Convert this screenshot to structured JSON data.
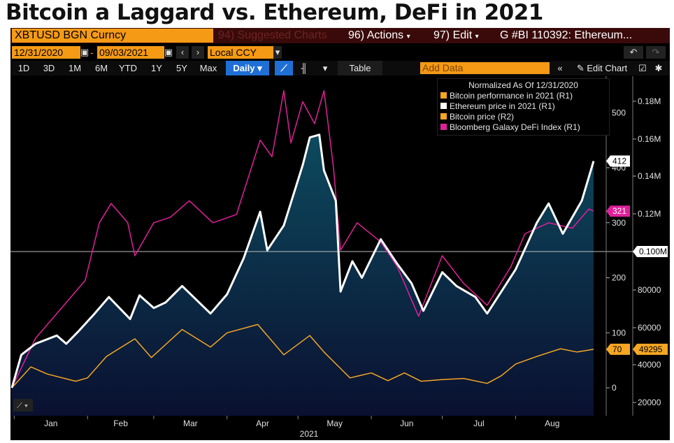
{
  "headline": "Bitcoin a Laggard vs. Ethereum, DeFi in 2021",
  "toolbar": {
    "ticker": "XBTUSD BGN Curncy",
    "suggested": "94) Suggested Charts",
    "actions": "96) Actions",
    "edit": "97) Edit",
    "bi": "G #BI 110392: Ethereum...",
    "date_start": "12/31/2020",
    "date_sep": "-",
    "date_end": "09/03/2021",
    "currency": "Local CCY",
    "timeframes": [
      "1D",
      "3D",
      "1M",
      "6M",
      "YTD",
      "1Y",
      "5Y",
      "Max"
    ],
    "frequency": "Daily",
    "table_label": "Table",
    "add_data_placeholder": "Add Data",
    "edit_chart": "Edit Chart"
  },
  "colors": {
    "bitcoin_perf": "#f5a623",
    "ethereum": "#ffffff",
    "bitcoin_price": "#f5a623",
    "defi": "#e0209a",
    "area_top": "#0d4a5e",
    "area_bottom": "#0a1030",
    "terminal_bg": "#000000"
  },
  "chart_data": {
    "type": "line",
    "legend_title": "Normalized As Of 12/31/2020",
    "legend_placement": "top-right",
    "x_tick_labels": [
      "Jan",
      "Feb",
      "Mar",
      "Apr",
      "May",
      "Jun",
      "Jul",
      "Aug"
    ],
    "x_axis_year": "2021",
    "y_left_ticks": [
      0,
      100,
      200,
      300,
      400,
      500
    ],
    "y_left_range": [
      -30,
      560
    ],
    "y_right_ticks": [
      "20000",
      "40000",
      "60000",
      "80000",
      "0.100M",
      "0.12M",
      "0.14M",
      "0.16M",
      "0.18M"
    ],
    "y_right_range": [
      13000,
      0.195
    ],
    "reference_line": 0.1,
    "end_labels": {
      "ethereum": "412",
      "defi": "321",
      "bitcoin_perf": "70",
      "bitcoin_price": "49295"
    },
    "series": [
      {
        "name": "Bitcoin performance in 2021 (R1)",
        "axis": "left",
        "x": [
          "2020-12-31",
          "2021-01-08",
          "2021-01-15",
          "2021-01-27",
          "2021-02-01",
          "2021-02-09",
          "2021-02-21",
          "2021-02-28",
          "2021-03-13",
          "2021-03-25",
          "2021-04-01",
          "2021-04-14",
          "2021-04-25",
          "2021-05-06",
          "2021-05-12",
          "2021-05-19",
          "2021-05-23",
          "2021-06-01",
          "2021-06-08",
          "2021-06-15",
          "2021-06-22",
          "2021-07-01",
          "2021-07-10",
          "2021-07-20",
          "2021-07-26",
          "2021-08-01",
          "2021-08-10",
          "2021-08-20",
          "2021-08-27",
          "2021-09-03"
        ],
        "values": [
          0,
          38,
          25,
          12,
          18,
          57,
          89,
          55,
          106,
          74,
          100,
          115,
          60,
          95,
          65,
          35,
          18,
          27,
          13,
          27,
          12,
          15,
          17,
          8,
          22,
          43,
          57,
          71,
          65,
          70
        ]
      },
      {
        "name": "Ethereum price in 2021 (R1)",
        "axis": "left",
        "x": [
          "2020-12-31",
          "2021-01-04",
          "2021-01-10",
          "2021-01-19",
          "2021-01-23",
          "2021-01-28",
          "2021-02-04",
          "2021-02-10",
          "2021-02-19",
          "2021-02-23",
          "2021-03-01",
          "2021-03-06",
          "2021-03-13",
          "2021-03-25",
          "2021-04-01",
          "2021-04-08",
          "2021-04-15",
          "2021-04-18",
          "2021-04-25",
          "2021-05-03",
          "2021-05-06",
          "2021-05-10",
          "2021-05-12",
          "2021-05-17",
          "2021-05-19",
          "2021-05-24",
          "2021-05-28",
          "2021-06-05",
          "2021-06-12",
          "2021-06-18",
          "2021-06-23",
          "2021-07-01",
          "2021-07-07",
          "2021-07-15",
          "2021-07-20",
          "2021-08-01",
          "2021-08-10",
          "2021-08-15",
          "2021-08-21",
          "2021-08-29",
          "2021-09-03"
        ],
        "values": [
          0,
          60,
          80,
          95,
          80,
          102,
          135,
          165,
          125,
          168,
          145,
          155,
          185,
          135,
          170,
          235,
          320,
          250,
          295,
          405,
          455,
          460,
          395,
          340,
          175,
          230,
          200,
          270,
          225,
          190,
          140,
          210,
          185,
          165,
          135,
          215,
          300,
          335,
          280,
          340,
          412
        ]
      },
      {
        "name": "Bitcoin price (R2)",
        "axis": "right",
        "x": [
          "2020-12-31",
          "2021-01-08",
          "2021-01-15",
          "2021-01-27",
          "2021-02-01",
          "2021-02-09",
          "2021-02-21",
          "2021-02-28",
          "2021-03-13",
          "2021-03-25",
          "2021-04-01",
          "2021-04-14",
          "2021-04-25",
          "2021-05-06",
          "2021-05-12",
          "2021-05-19",
          "2021-05-23",
          "2021-06-01",
          "2021-06-08",
          "2021-06-15",
          "2021-06-22",
          "2021-07-01",
          "2021-07-10",
          "2021-07-20",
          "2021-07-26",
          "2021-08-01",
          "2021-08-10",
          "2021-08-20",
          "2021-08-27",
          "2021-09-03"
        ],
        "values": [
          29000,
          40000,
          36300,
          32500,
          34200,
          45600,
          54800,
          45000,
          59900,
          50500,
          58000,
          62400,
          46400,
          56500,
          47900,
          39200,
          34300,
          36900,
          32800,
          36900,
          32600,
          33400,
          33900,
          31300,
          35400,
          41500,
          45500,
          49500,
          47800,
          49295
        ]
      },
      {
        "name": "Bloomberg Galaxy DeFi Index (R1)",
        "axis": "left",
        "x": [
          "2020-12-31",
          "2021-01-10",
          "2021-01-20",
          "2021-01-31",
          "2021-02-06",
          "2021-02-11",
          "2021-02-18",
          "2021-02-21",
          "2021-03-01",
          "2021-03-08",
          "2021-03-16",
          "2021-03-26",
          "2021-04-05",
          "2021-04-15",
          "2021-04-20",
          "2021-04-25",
          "2021-04-28",
          "2021-05-03",
          "2021-05-08",
          "2021-05-12",
          "2021-05-16",
          "2021-05-19",
          "2021-05-26",
          "2021-06-05",
          "2021-06-12",
          "2021-06-21",
          "2021-07-01",
          "2021-07-10",
          "2021-07-20",
          "2021-07-30",
          "2021-08-05",
          "2021-08-15",
          "2021-08-25",
          "2021-09-01",
          "2021-09-03"
        ],
        "values": [
          0,
          90,
          140,
          195,
          300,
          335,
          300,
          240,
          300,
          310,
          340,
          300,
          315,
          450,
          420,
          540,
          445,
          520,
          480,
          540,
          400,
          250,
          300,
          265,
          220,
          130,
          240,
          190,
          150,
          220,
          280,
          300,
          290,
          325,
          321
        ]
      }
    ]
  }
}
